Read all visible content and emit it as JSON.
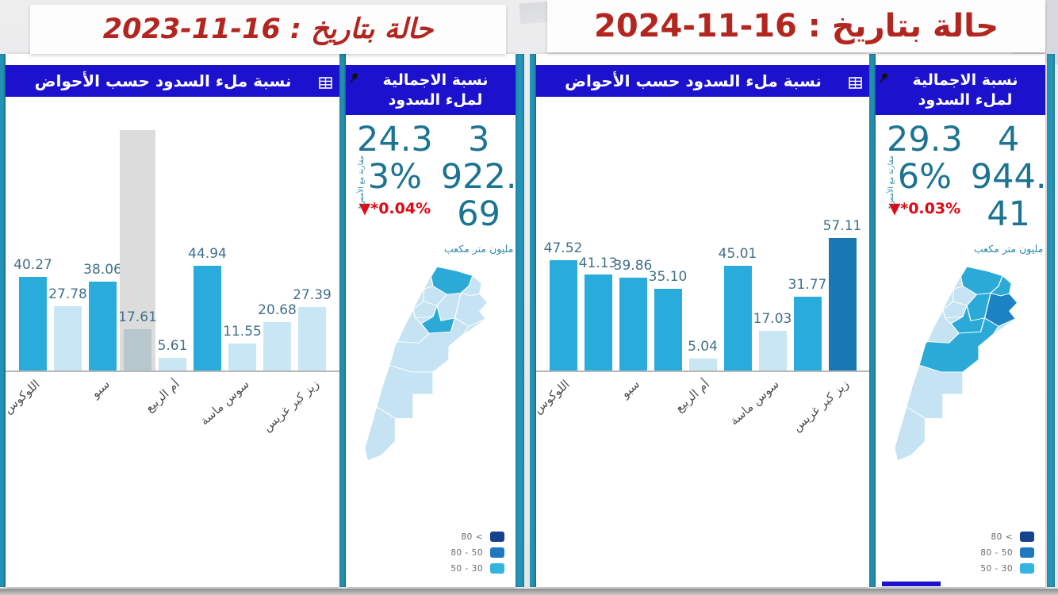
{
  "colors": {
    "header_blue": "#1c12cd",
    "teal_frame": "#2495b8",
    "title_red": "#b2261f",
    "delta_red": "#e30613",
    "kpi_text": "#1d7492",
    "bar_medium": "#29abdc",
    "bar_light": "#c9e6f4",
    "bar_dark": "#1878b4",
    "bar_gray": "#b7c7ce",
    "selection_gray": "#dcdcdc",
    "map_light": "#c5e3f2",
    "map_medium": "#2baad8",
    "map_dark": "#1b82c4"
  },
  "icons": {
    "panel_grid_icon": "table-grid",
    "kpi_pin_icon": "pushpin",
    "delta_arrow": "down-triangle"
  },
  "legend": {
    "rows": [
      {
        "label": "80 <",
        "color": "#16418f"
      },
      {
        "label": "80 - 50",
        "color": "#1d78c0"
      },
      {
        "label": "50 - 30",
        "color": "#33b3e0"
      }
    ]
  },
  "chart_data": [
    {
      "type": "bar",
      "title": "نسبة ملء السدود حسب الأحواض",
      "date": "16-11-2023",
      "categories": [
        "اللوكوس",
        "",
        "سبو",
        "",
        "أم الربيع",
        "",
        "سوس ماسة",
        "",
        "زيز كير غريس"
      ],
      "values": [
        40.27,
        27.78,
        38.06,
        17.61,
        5.61,
        44.94,
        11.55,
        20.68,
        27.39
      ],
      "bar_styles": [
        "medium",
        "light",
        "medium",
        "gray",
        "light",
        "medium",
        "light",
        "light",
        "light"
      ],
      "selected_index": 3,
      "xlabel": "",
      "ylabel": "",
      "ylim": [
        0,
        60
      ],
      "grid": false
    },
    {
      "type": "bar",
      "title": "نسبة ملء السدود حسب الأحواض",
      "date": "16-11-2024",
      "categories": [
        "اللوكوس",
        "",
        "سبو",
        "",
        "أم الربيع",
        "",
        "سوس ماسة",
        "",
        "زيز كير غريس"
      ],
      "values": [
        47.52,
        41.13,
        39.86,
        35.1,
        5.04,
        45.01,
        17.03,
        31.77,
        57.11
      ],
      "bar_styles": [
        "medium",
        "medium",
        "medium",
        "medium",
        "light",
        "medium",
        "light",
        "medium",
        "dark"
      ],
      "selected_index": -1,
      "xlabel": "",
      "ylabel": "",
      "ylim": [
        0,
        60
      ],
      "grid": false
    }
  ],
  "dashboards": [
    {
      "title": "حالة بتاريخ : 16-11-2023",
      "chart_header": "نسبة ملء السدود حسب الأحواض",
      "kpi": {
        "header": "نسبة الاجمالية لملء السدود",
        "percent_value": "24.33%",
        "percent_lines": [
          "24.3",
          "3%"
        ],
        "delta_text": "▼*0.04%",
        "note": "مقارنة مع الأمس*",
        "total_value": "3 922.69",
        "total_lines": [
          "3",
          "922.",
          "69"
        ],
        "unit": "مليون متر مكعب"
      },
      "map": {
        "regions": {
          "north": "medium",
          "oriental": "light",
          "figuig": "light",
          "fes": "light",
          "rabat": "light",
          "casa": "light",
          "benimellal": "medium",
          "marrakech": "light",
          "souss": "light",
          "ws_north": "light",
          "ws_south": "light"
        }
      }
    },
    {
      "title": "حالة بتاريخ : 16-11-2024",
      "chart_header": "نسبة ملء السدود حسب الأحواض",
      "kpi": {
        "header": "نسبة الاجمالية لملء السدود",
        "percent_value": "29.36%",
        "percent_lines": [
          "29.3",
          "6%"
        ],
        "delta_text": "▼*0.03%",
        "note": "مقارنة مع الأمس*",
        "total_value": "4 944.41",
        "total_lines": [
          "4",
          "944.",
          "41"
        ],
        "unit": "مليون متر مكعب"
      },
      "map": {
        "regions": {
          "north": "medium",
          "oriental": "medium",
          "figuig": "dark",
          "fes": "medium",
          "rabat": "light",
          "casa": "light",
          "benimellal": "medium",
          "marrakech": "light",
          "souss": "medium",
          "ws_north": "light",
          "ws_south": "light"
        }
      }
    }
  ]
}
